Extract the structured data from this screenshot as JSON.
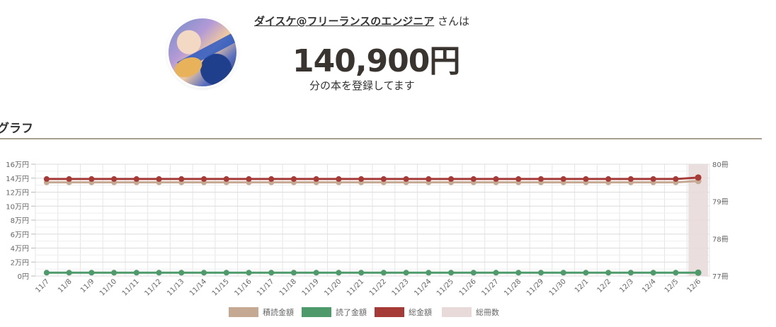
{
  "profile": {
    "username": "ダイスケ@フリーランスのエンジニア",
    "username_suffix": "さんは",
    "amount": "140,900円",
    "amount_caption": "分の本を登録してます"
  },
  "section": {
    "title": "グラフ"
  },
  "colors": {
    "reading": "#c6a992",
    "finished": "#4e9a6a",
    "total": "#a53a36",
    "book_count": "#e9dada"
  },
  "chart_data": {
    "type": "line",
    "categories": [
      "11/7",
      "11/8",
      "11/9",
      "11/10",
      "11/11",
      "11/12",
      "11/13",
      "11/14",
      "11/15",
      "11/16",
      "11/17",
      "11/18",
      "11/19",
      "11/20",
      "11/21",
      "11/22",
      "11/23",
      "11/24",
      "11/25",
      "11/26",
      "11/27",
      "11/28",
      "11/29",
      "11/30",
      "12/1",
      "12/2",
      "12/3",
      "12/4",
      "12/5",
      "12/6"
    ],
    "y_left": {
      "ticks": [
        "0円",
        "2万円",
        "4万円",
        "6万円",
        "8万円",
        "10万円",
        "12万円",
        "14万円",
        "16万円"
      ],
      "range": [
        0,
        160000
      ]
    },
    "y_right": {
      "ticks": [
        "77冊",
        "78冊",
        "79冊",
        "80冊"
      ],
      "range": [
        77,
        80
      ]
    },
    "series": [
      {
        "name": "積読金額",
        "axis": "left",
        "kind": "line",
        "color": "#c6a992",
        "values": [
          134000,
          134000,
          134000,
          134000,
          134000,
          134000,
          134000,
          134000,
          134000,
          134000,
          134000,
          134000,
          134000,
          134000,
          134000,
          134000,
          134000,
          134000,
          134000,
          134000,
          134000,
          134000,
          134000,
          134000,
          134000,
          134000,
          134000,
          134000,
          134000,
          136000
        ]
      },
      {
        "name": "読了金額",
        "axis": "left",
        "kind": "line",
        "color": "#4e9a6a",
        "values": [
          4800,
          4800,
          4800,
          4800,
          4800,
          4800,
          4800,
          4800,
          4800,
          4800,
          4800,
          4800,
          4800,
          4800,
          4800,
          4800,
          4800,
          4800,
          4800,
          4800,
          4800,
          4800,
          4800,
          4800,
          4800,
          4800,
          4800,
          4800,
          4800,
          4800
        ]
      },
      {
        "name": "総金額",
        "axis": "left",
        "kind": "line",
        "color": "#a53a36",
        "values": [
          138800,
          138800,
          138800,
          138800,
          138800,
          138800,
          138800,
          138800,
          138800,
          138800,
          138800,
          138800,
          138800,
          138800,
          138800,
          138800,
          138800,
          138800,
          138800,
          138800,
          138800,
          138800,
          138800,
          138800,
          138800,
          138800,
          138800,
          138800,
          138800,
          140900
        ]
      },
      {
        "name": "総冊数",
        "axis": "right",
        "kind": "bar",
        "color": "#e9dada",
        "values": [
          null,
          null,
          null,
          null,
          null,
          null,
          null,
          null,
          null,
          null,
          null,
          null,
          null,
          null,
          null,
          null,
          null,
          null,
          null,
          null,
          null,
          null,
          null,
          null,
          null,
          null,
          null,
          null,
          null,
          80
        ]
      }
    ],
    "legend": "bottom",
    "grid": true
  }
}
